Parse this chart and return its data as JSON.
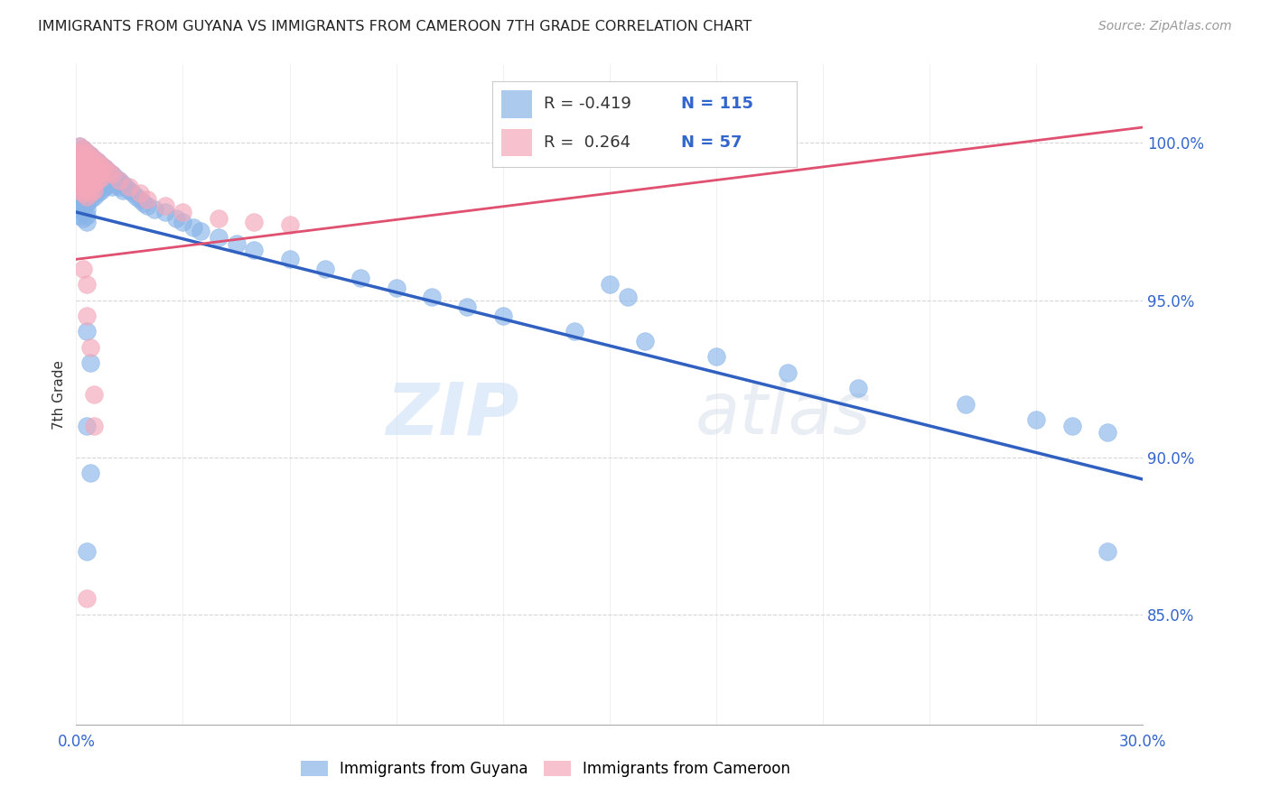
{
  "title": "IMMIGRANTS FROM GUYANA VS IMMIGRANTS FROM CAMEROON 7TH GRADE CORRELATION CHART",
  "source": "Source: ZipAtlas.com",
  "ylabel": "7th Grade",
  "ytick_values": [
    0.85,
    0.9,
    0.95,
    1.0
  ],
  "xmin": 0.0,
  "xmax": 0.3,
  "ymin": 0.815,
  "ymax": 1.025,
  "legend_blue_r": "-0.419",
  "legend_blue_n": "115",
  "legend_pink_r": "0.264",
  "legend_pink_n": "57",
  "watermark_zip": "ZIP",
  "watermark_atlas": "atlas",
  "blue_color": "#89B4E8",
  "pink_color": "#F4A7B9",
  "blue_line_color": "#3060C0",
  "pink_line_color": "#E05070",
  "blue_line_x": [
    0.0,
    0.3
  ],
  "blue_line_y": [
    0.978,
    0.893
  ],
  "pink_line_x": [
    0.0,
    0.3
  ],
  "pink_line_y": [
    0.963,
    1.005
  ],
  "blue_scatter": [
    [
      0.001,
      0.999
    ],
    [
      0.001,
      0.997
    ],
    [
      0.001,
      0.995
    ],
    [
      0.001,
      0.993
    ],
    [
      0.001,
      0.991
    ],
    [
      0.001,
      0.989
    ],
    [
      0.001,
      0.987
    ],
    [
      0.001,
      0.985
    ],
    [
      0.001,
      0.983
    ],
    [
      0.001,
      0.981
    ],
    [
      0.001,
      0.979
    ],
    [
      0.001,
      0.977
    ],
    [
      0.002,
      0.998
    ],
    [
      0.002,
      0.996
    ],
    [
      0.002,
      0.994
    ],
    [
      0.002,
      0.992
    ],
    [
      0.002,
      0.99
    ],
    [
      0.002,
      0.988
    ],
    [
      0.002,
      0.986
    ],
    [
      0.002,
      0.984
    ],
    [
      0.002,
      0.982
    ],
    [
      0.002,
      0.98
    ],
    [
      0.002,
      0.978
    ],
    [
      0.002,
      0.976
    ],
    [
      0.003,
      0.997
    ],
    [
      0.003,
      0.995
    ],
    [
      0.003,
      0.993
    ],
    [
      0.003,
      0.991
    ],
    [
      0.003,
      0.989
    ],
    [
      0.003,
      0.987
    ],
    [
      0.003,
      0.985
    ],
    [
      0.003,
      0.983
    ],
    [
      0.003,
      0.981
    ],
    [
      0.003,
      0.979
    ],
    [
      0.003,
      0.977
    ],
    [
      0.003,
      0.975
    ],
    [
      0.004,
      0.996
    ],
    [
      0.004,
      0.994
    ],
    [
      0.004,
      0.992
    ],
    [
      0.004,
      0.99
    ],
    [
      0.004,
      0.988
    ],
    [
      0.004,
      0.986
    ],
    [
      0.004,
      0.984
    ],
    [
      0.004,
      0.982
    ],
    [
      0.005,
      0.995
    ],
    [
      0.005,
      0.993
    ],
    [
      0.005,
      0.991
    ],
    [
      0.005,
      0.989
    ],
    [
      0.005,
      0.987
    ],
    [
      0.005,
      0.985
    ],
    [
      0.005,
      0.983
    ],
    [
      0.006,
      0.994
    ],
    [
      0.006,
      0.992
    ],
    [
      0.006,
      0.99
    ],
    [
      0.006,
      0.988
    ],
    [
      0.006,
      0.986
    ],
    [
      0.006,
      0.984
    ],
    [
      0.007,
      0.993
    ],
    [
      0.007,
      0.991
    ],
    [
      0.007,
      0.989
    ],
    [
      0.007,
      0.987
    ],
    [
      0.007,
      0.985
    ],
    [
      0.008,
      0.992
    ],
    [
      0.008,
      0.99
    ],
    [
      0.008,
      0.988
    ],
    [
      0.008,
      0.986
    ],
    [
      0.009,
      0.991
    ],
    [
      0.009,
      0.989
    ],
    [
      0.009,
      0.987
    ],
    [
      0.01,
      0.99
    ],
    [
      0.01,
      0.988
    ],
    [
      0.01,
      0.986
    ],
    [
      0.011,
      0.989
    ],
    [
      0.011,
      0.987
    ],
    [
      0.012,
      0.988
    ],
    [
      0.012,
      0.986
    ],
    [
      0.013,
      0.987
    ],
    [
      0.013,
      0.985
    ],
    [
      0.014,
      0.986
    ],
    [
      0.015,
      0.985
    ],
    [
      0.016,
      0.984
    ],
    [
      0.017,
      0.983
    ],
    [
      0.018,
      0.982
    ],
    [
      0.019,
      0.981
    ],
    [
      0.02,
      0.98
    ],
    [
      0.022,
      0.979
    ],
    [
      0.025,
      0.978
    ],
    [
      0.028,
      0.976
    ],
    [
      0.03,
      0.975
    ],
    [
      0.033,
      0.973
    ],
    [
      0.035,
      0.972
    ],
    [
      0.04,
      0.97
    ],
    [
      0.045,
      0.968
    ],
    [
      0.05,
      0.966
    ],
    [
      0.06,
      0.963
    ],
    [
      0.07,
      0.96
    ],
    [
      0.08,
      0.957
    ],
    [
      0.09,
      0.954
    ],
    [
      0.1,
      0.951
    ],
    [
      0.11,
      0.948
    ],
    [
      0.12,
      0.945
    ],
    [
      0.14,
      0.94
    ],
    [
      0.15,
      0.955
    ],
    [
      0.16,
      0.937
    ],
    [
      0.18,
      0.932
    ],
    [
      0.2,
      0.927
    ],
    [
      0.22,
      0.922
    ],
    [
      0.155,
      0.951
    ],
    [
      0.25,
      0.917
    ],
    [
      0.27,
      0.912
    ],
    [
      0.28,
      0.91
    ],
    [
      0.29,
      0.908
    ],
    [
      0.003,
      0.94
    ],
    [
      0.004,
      0.93
    ],
    [
      0.003,
      0.91
    ],
    [
      0.004,
      0.895
    ],
    [
      0.003,
      0.87
    ],
    [
      0.29,
      0.87
    ]
  ],
  "pink_scatter": [
    [
      0.001,
      0.999
    ],
    [
      0.001,
      0.997
    ],
    [
      0.001,
      0.995
    ],
    [
      0.001,
      0.993
    ],
    [
      0.001,
      0.991
    ],
    [
      0.001,
      0.989
    ],
    [
      0.001,
      0.987
    ],
    [
      0.001,
      0.985
    ],
    [
      0.002,
      0.998
    ],
    [
      0.002,
      0.996
    ],
    [
      0.002,
      0.994
    ],
    [
      0.002,
      0.992
    ],
    [
      0.002,
      0.99
    ],
    [
      0.002,
      0.988
    ],
    [
      0.002,
      0.986
    ],
    [
      0.002,
      0.984
    ],
    [
      0.003,
      0.997
    ],
    [
      0.003,
      0.995
    ],
    [
      0.003,
      0.993
    ],
    [
      0.003,
      0.991
    ],
    [
      0.003,
      0.989
    ],
    [
      0.003,
      0.987
    ],
    [
      0.003,
      0.985
    ],
    [
      0.003,
      0.983
    ],
    [
      0.004,
      0.996
    ],
    [
      0.004,
      0.994
    ],
    [
      0.004,
      0.992
    ],
    [
      0.004,
      0.99
    ],
    [
      0.004,
      0.988
    ],
    [
      0.004,
      0.986
    ],
    [
      0.004,
      0.984
    ],
    [
      0.005,
      0.995
    ],
    [
      0.005,
      0.993
    ],
    [
      0.005,
      0.991
    ],
    [
      0.005,
      0.989
    ],
    [
      0.005,
      0.987
    ],
    [
      0.005,
      0.985
    ],
    [
      0.006,
      0.994
    ],
    [
      0.006,
      0.992
    ],
    [
      0.006,
      0.99
    ],
    [
      0.006,
      0.988
    ],
    [
      0.007,
      0.993
    ],
    [
      0.007,
      0.991
    ],
    [
      0.007,
      0.989
    ],
    [
      0.008,
      0.992
    ],
    [
      0.009,
      0.991
    ],
    [
      0.01,
      0.99
    ],
    [
      0.012,
      0.988
    ],
    [
      0.015,
      0.986
    ],
    [
      0.018,
      0.984
    ],
    [
      0.02,
      0.982
    ],
    [
      0.025,
      0.98
    ],
    [
      0.03,
      0.978
    ],
    [
      0.04,
      0.976
    ],
    [
      0.05,
      0.975
    ],
    [
      0.06,
      0.974
    ],
    [
      0.002,
      0.96
    ],
    [
      0.003,
      0.955
    ],
    [
      0.003,
      0.945
    ],
    [
      0.004,
      0.935
    ],
    [
      0.005,
      0.92
    ],
    [
      0.005,
      0.91
    ],
    [
      0.003,
      0.855
    ]
  ]
}
